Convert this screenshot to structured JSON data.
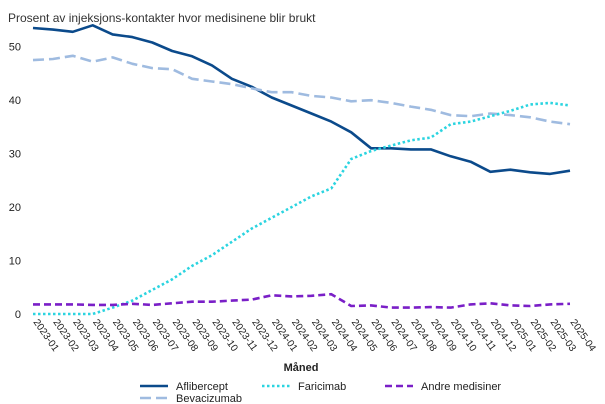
{
  "chart_data": {
    "type": "line",
    "title": "Prosent av injeksjons-kontakter hvor medisinene blir brukt",
    "xlabel": "Måned",
    "ylabel": "",
    "ylim": [
      0,
      55
    ],
    "yticks": [
      0,
      10,
      20,
      30,
      40,
      50
    ],
    "grid": false,
    "legend_position": "bottom",
    "categories": [
      "2023-01",
      "2023-02",
      "2023-03",
      "2023-04",
      "2023-05",
      "2023-06",
      "2023-07",
      "2023-08",
      "2023-09",
      "2023-10",
      "2023-11",
      "2023-12",
      "2024-01",
      "2024-02",
      "2024-03",
      "2024-04",
      "2024-05",
      "2024-06",
      "2024-07",
      "2024-08",
      "2024-09",
      "2024-10",
      "2024-11",
      "2024-12",
      "2025-01",
      "2025-02",
      "2025-03",
      "2025-04"
    ],
    "series": [
      {
        "name": "Aflibercept",
        "color": "#0b4a8b",
        "dash": "solid",
        "values": [
          53.5,
          53.2,
          52.8,
          54.0,
          52.3,
          51.8,
          50.8,
          49.2,
          48.2,
          46.5,
          44.0,
          42.5,
          40.5,
          39.0,
          37.5,
          36.0,
          34.0,
          31.0,
          31.0,
          30.8,
          30.8,
          29.5,
          28.5,
          26.6,
          27.0,
          26.5,
          26.2,
          26.8
        ]
      },
      {
        "name": "Bevacizumab",
        "color": "#9fbbe0",
        "dash": "long",
        "values": [
          47.5,
          47.7,
          48.3,
          47.2,
          48.0,
          46.8,
          46.0,
          45.8,
          44.0,
          43.5,
          43.0,
          42.2,
          41.5,
          41.5,
          40.8,
          40.5,
          39.8,
          40.0,
          39.5,
          38.8,
          38.2,
          37.2,
          37.0,
          37.5,
          37.2,
          36.8,
          36.0,
          35.5
        ]
      },
      {
        "name": "Faricimab",
        "color": "#2bd4e0",
        "dash": "dot",
        "values": [
          0,
          0,
          0,
          0,
          1.2,
          2.5,
          4.5,
          6.5,
          9.0,
          11.0,
          13.5,
          16.0,
          18.0,
          20.0,
          22.0,
          23.5,
          29.0,
          30.5,
          31.5,
          32.5,
          33.0,
          35.5,
          36.0,
          37.0,
          38.0,
          39.2,
          39.5,
          39.0
        ]
      },
      {
        "name": "Andre medisiner",
        "color": "#7a1fc7",
        "dash": "dash",
        "values": [
          1.8,
          1.8,
          1.8,
          1.7,
          1.7,
          1.9,
          1.7,
          2.0,
          2.3,
          2.3,
          2.5,
          2.7,
          3.5,
          3.3,
          3.4,
          3.7,
          1.5,
          1.6,
          1.2,
          1.2,
          1.3,
          1.2,
          1.8,
          2.0,
          1.6,
          1.5,
          1.8,
          1.9
        ]
      }
    ]
  }
}
